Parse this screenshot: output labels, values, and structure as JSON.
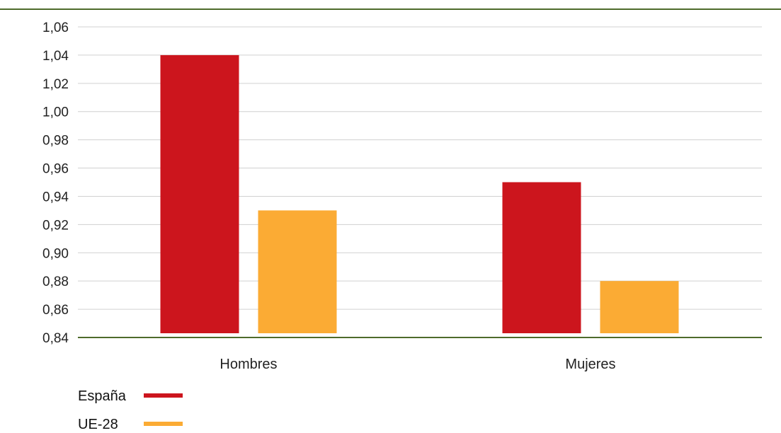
{
  "chart_data": {
    "type": "bar",
    "title": "",
    "xlabel": "",
    "ylabel": "",
    "categories": [
      "Hombres",
      "Mujeres"
    ],
    "series": [
      {
        "name": "España",
        "values": [
          1.04,
          0.95
        ],
        "color": "#cc151d"
      },
      {
        "name": "UE-28",
        "values": [
          0.93,
          0.88
        ],
        "color": "#fbab34"
      }
    ],
    "ylim": [
      0.84,
      1.06
    ],
    "ytick_step": 0.02,
    "ytick_labels": [
      "0,84",
      "0,86",
      "0,88",
      "0,90",
      "0,92",
      "0,94",
      "0,96",
      "0,98",
      "1,00",
      "1,02",
      "1,04",
      "1,06"
    ],
    "grid": true,
    "legend_position": "bottom-left",
    "baseline_color": "#4e6b2b",
    "top_rule_color": "#4e6b2b"
  }
}
